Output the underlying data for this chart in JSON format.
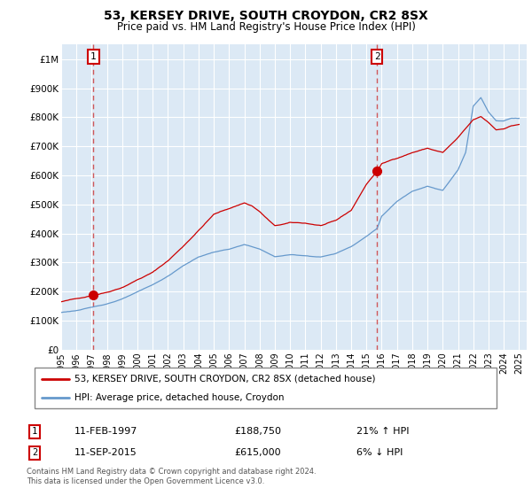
{
  "title": "53, KERSEY DRIVE, SOUTH CROYDON, CR2 8SX",
  "subtitle": "Price paid vs. HM Land Registry's House Price Index (HPI)",
  "background_color": "#ffffff",
  "plot_bg_color": "#dce9f5",
  "grid_color": "#ffffff",
  "ylim": [
    0,
    1050000
  ],
  "yticks": [
    0,
    100000,
    200000,
    300000,
    400000,
    500000,
    600000,
    700000,
    800000,
    900000,
    1000000
  ],
  "ytick_labels": [
    "£0",
    "£100K",
    "£200K",
    "£300K",
    "£400K",
    "£500K",
    "£600K",
    "£700K",
    "£800K",
    "£900K",
    "£1M"
  ],
  "xlim_start": 1995.0,
  "xlim_end": 2025.5,
  "marker1_x": 1997.12,
  "marker1_y": 188750,
  "marker1_label": "1",
  "marker2_x": 2015.7,
  "marker2_y": 615000,
  "marker2_label": "2",
  "legend_line1": "53, KERSEY DRIVE, SOUTH CROYDON, CR2 8SX (detached house)",
  "legend_line2": "HPI: Average price, detached house, Croydon",
  "table_row1": [
    "1",
    "11-FEB-1997",
    "£188,750",
    "21% ↑ HPI"
  ],
  "table_row2": [
    "2",
    "11-SEP-2015",
    "£615,000",
    "6% ↓ HPI"
  ],
  "footer": "Contains HM Land Registry data © Crown copyright and database right 2024.\nThis data is licensed under the Open Government Licence v3.0.",
  "line_red_color": "#cc0000",
  "line_blue_color": "#6699cc"
}
